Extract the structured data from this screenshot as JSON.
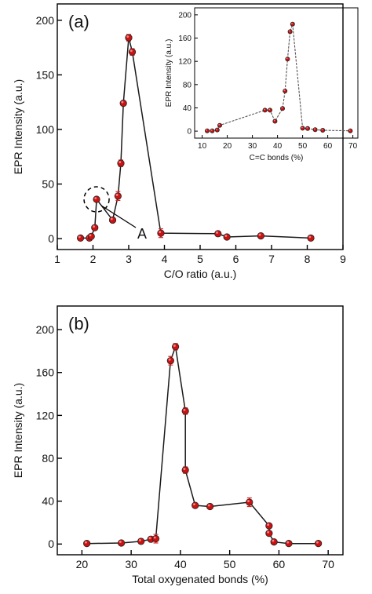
{
  "chart_data": [
    {
      "type": "scatter",
      "panel_label": "(a)",
      "xlabel": "C/O ratio (a.u.)",
      "ylabel": "EPR Intensity (a.u.)",
      "xlim": [
        1,
        9
      ],
      "ylim": [
        -10,
        215
      ],
      "xticks": [
        1,
        2,
        3,
        4,
        5,
        6,
        7,
        8,
        9
      ],
      "yticks": [
        0,
        50,
        100,
        150,
        200
      ],
      "series": [
        {
          "marker_color": "#cc1111",
          "points": [
            {
              "x": 1.65,
              "y": 0.5
            },
            {
              "x": 1.9,
              "y": 0.5
            },
            {
              "x": 1.95,
              "y": 2
            },
            {
              "x": 2.05,
              "y": 10
            },
            {
              "x": 2.1,
              "y": 36
            },
            {
              "x": 2.55,
              "y": 17
            },
            {
              "x": 2.7,
              "y": 39
            },
            {
              "x": 2.78,
              "y": 69
            },
            {
              "x": 2.85,
              "y": 124
            },
            {
              "x": 3.0,
              "y": 184
            },
            {
              "x": 3.1,
              "y": 171
            },
            {
              "x": 3.9,
              "y": 5
            },
            {
              "x": 5.5,
              "y": 4.5
            },
            {
              "x": 5.75,
              "y": 1.5
            },
            {
              "x": 6.7,
              "y": 2.5
            },
            {
              "x": 8.1,
              "y": 0.5
            }
          ],
          "errors": [
            0,
            0,
            0,
            0,
            0,
            0,
            4,
            3,
            2,
            3,
            3,
            4,
            0,
            0,
            0,
            0
          ]
        }
      ],
      "annotations": [
        {
          "text": "A",
          "x": 2.1,
          "y": 36
        }
      ]
    },
    {
      "type": "scatter",
      "inset": true,
      "xlabel": "C=C bonds (%)",
      "ylabel": "EPR Intensity (a.u.)",
      "xlim": [
        7,
        72
      ],
      "ylim": [
        -12,
        212
      ],
      "xticks": [
        10,
        20,
        30,
        40,
        50,
        60,
        70
      ],
      "yticks": [
        0,
        40,
        80,
        120,
        160,
        200
      ],
      "series": [
        {
          "marker_color": "#cc1111",
          "points": [
            {
              "x": 12,
              "y": 0.5
            },
            {
              "x": 14,
              "y": 0.5
            },
            {
              "x": 16,
              "y": 2
            },
            {
              "x": 17,
              "y": 10
            },
            {
              "x": 35,
              "y": 36
            },
            {
              "x": 37,
              "y": 36
            },
            {
              "x": 39,
              "y": 17
            },
            {
              "x": 42,
              "y": 39
            },
            {
              "x": 43,
              "y": 69
            },
            {
              "x": 44,
              "y": 124
            },
            {
              "x": 45,
              "y": 171
            },
            {
              "x": 46,
              "y": 184
            },
            {
              "x": 50,
              "y": 5
            },
            {
              "x": 52,
              "y": 4.5
            },
            {
              "x": 55,
              "y": 2.5
            },
            {
              "x": 58,
              "y": 1.5
            },
            {
              "x": 69,
              "y": 0.5
            }
          ]
        }
      ]
    },
    {
      "type": "scatter",
      "panel_label": "(b)",
      "xlabel": "Total oxygenated bonds (%)",
      "ylabel": "EPR Intensity (a.u.)",
      "xlim": [
        15,
        73
      ],
      "ylim": [
        -10,
        222
      ],
      "xticks": [
        20,
        30,
        40,
        50,
        60,
        70
      ],
      "yticks": [
        0,
        40,
        80,
        120,
        160,
        200
      ],
      "series": [
        {
          "marker_color": "#cc1111",
          "points": [
            {
              "x": 21,
              "y": 0.5
            },
            {
              "x": 28,
              "y": 1
            },
            {
              "x": 32,
              "y": 2.5
            },
            {
              "x": 34,
              "y": 4.5
            },
            {
              "x": 35,
              "y": 5
            },
            {
              "x": 38,
              "y": 171
            },
            {
              "x": 39,
              "y": 184
            },
            {
              "x": 41,
              "y": 124
            },
            {
              "x": 41,
              "y": 69
            },
            {
              "x": 43,
              "y": 36
            },
            {
              "x": 46,
              "y": 35
            },
            {
              "x": 54,
              "y": 39
            },
            {
              "x": 58,
              "y": 17
            },
            {
              "x": 58,
              "y": 10
            },
            {
              "x": 59,
              "y": 2
            },
            {
              "x": 62,
              "y": 0.5
            },
            {
              "x": 68,
              "y": 0.5
            }
          ],
          "errors": [
            0,
            0,
            0,
            0,
            4,
            4,
            3,
            3,
            3,
            0,
            0,
            4,
            0,
            0,
            0,
            0,
            0
          ]
        }
      ]
    }
  ]
}
